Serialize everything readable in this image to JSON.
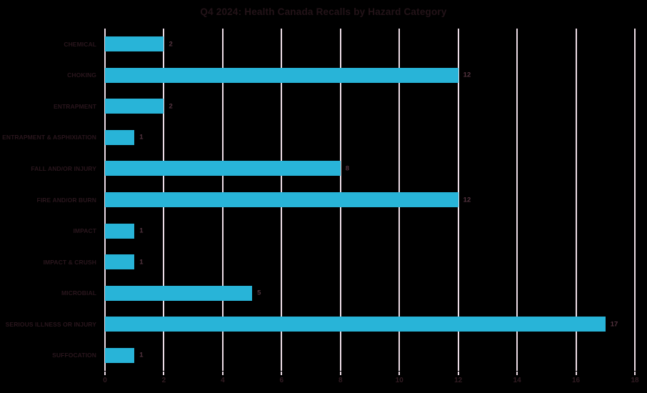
{
  "page": {
    "background_color": "#000000"
  },
  "chart_data": {
    "type": "bar",
    "orientation": "horizontal",
    "title": "Q4 2024: Health Canada Recalls by Hazard Category",
    "categories": [
      "CHEMICAL",
      "CHOKING",
      "ENTRAPMENT",
      "ENTRAPMENT & ASPHIXIATION",
      "FALL AND/OR INJURY",
      "FIRE AND/OR BURN",
      "IMPACT",
      "IMPACT & CRUSH",
      "MICROBIAL",
      "SERIOUS ILLNESS OR INJURY",
      "SUFFOCATION"
    ],
    "values": [
      2,
      12,
      2,
      1,
      8,
      12,
      1,
      1,
      5,
      17,
      1
    ],
    "data_labels": [
      "2",
      "12",
      "2",
      "1",
      "8",
      "12",
      "1",
      "1",
      "5",
      "17",
      "1"
    ],
    "xlabel": "",
    "ylabel": "",
    "xlim": [
      0,
      18
    ],
    "xticks": [
      0,
      2,
      4,
      6,
      8,
      10,
      12,
      14,
      16,
      18
    ],
    "grid": "vertical-only",
    "legend": "none",
    "colors": {
      "background": "#000000",
      "bar": "#28b4d8",
      "gridline": "#ecdce6",
      "title_text": "#231318",
      "category_text": "#2a161d",
      "value_text": "#553440",
      "tick_text": "#321c23"
    }
  }
}
